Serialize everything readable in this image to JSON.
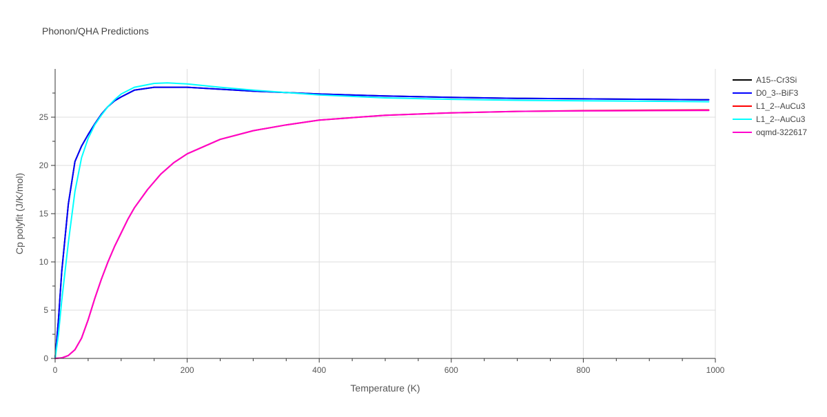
{
  "chart_data": {
    "type": "line",
    "title": "Phonon/QHA Predictions",
    "xlabel": "Temperature (K)",
    "ylabel": "Cp polyfit (J/K/mol)",
    "xlim": [
      0,
      1000
    ],
    "ylim": [
      0,
      30
    ],
    "xticks": [
      0,
      200,
      400,
      600,
      800,
      1000
    ],
    "yticks": [
      0,
      5,
      10,
      15,
      20,
      25
    ],
    "grid": true,
    "legend_position": "top-right",
    "series": [
      {
        "name": "A15--Cr3Si",
        "color": "#000000",
        "x": [
          0,
          5,
          10,
          20,
          30,
          40,
          50,
          60,
          70,
          80,
          90,
          100,
          120,
          150,
          200,
          300,
          400,
          500,
          600,
          700,
          800,
          900,
          990
        ],
        "y": [
          0,
          4,
          9,
          16,
          20.4,
          22,
          23.2,
          24.3,
          25.3,
          26.1,
          26.7,
          27.1,
          27.8,
          28.1,
          28.1,
          27.7,
          27.4,
          27.2,
          27.05,
          26.95,
          26.9,
          26.85,
          26.8
        ]
      },
      {
        "name": "D0_3--BiF3",
        "color": "#0000ff",
        "x": [
          0,
          5,
          10,
          20,
          30,
          40,
          50,
          60,
          70,
          80,
          90,
          100,
          120,
          150,
          200,
          300,
          400,
          500,
          600,
          700,
          800,
          900,
          990
        ],
        "y": [
          0,
          4,
          9,
          16,
          20.4,
          22,
          23.2,
          24.3,
          25.3,
          26.1,
          26.7,
          27.1,
          27.8,
          28.1,
          28.1,
          27.7,
          27.4,
          27.2,
          27.05,
          26.95,
          26.9,
          26.85,
          26.8
        ]
      },
      {
        "name": "L1_2--AuCu3",
        "color": "#ff0000",
        "x": [
          0,
          10,
          20,
          30,
          40,
          50,
          60,
          70,
          80,
          90,
          100,
          110,
          120,
          140,
          160,
          180,
          200,
          250,
          300,
          350,
          400,
          500,
          600,
          700,
          800,
          900,
          990
        ],
        "y": [
          0,
          0.05,
          0.3,
          0.9,
          2.1,
          4,
          6.2,
          8.2,
          10,
          11.6,
          13,
          14.4,
          15.6,
          17.5,
          19.1,
          20.3,
          21.2,
          22.7,
          23.6,
          24.2,
          24.7,
          25.2,
          25.45,
          25.6,
          25.68,
          25.72,
          25.75
        ]
      },
      {
        "name": "L1_2--AuCu3",
        "color": "#00ffff",
        "x": [
          0,
          5,
          10,
          20,
          30,
          40,
          50,
          60,
          70,
          80,
          90,
          100,
          120,
          150,
          170,
          200,
          250,
          300,
          400,
          500,
          600,
          700,
          800,
          900,
          990
        ],
        "y": [
          0,
          2.5,
          6,
          12,
          17.3,
          20.8,
          22.8,
          24.2,
          25.2,
          26.1,
          26.8,
          27.4,
          28.1,
          28.5,
          28.55,
          28.45,
          28.1,
          27.8,
          27.3,
          27.0,
          26.85,
          26.75,
          26.7,
          26.65,
          26.6
        ]
      },
      {
        "name": "oqmd-322617",
        "color": "#ff00cc",
        "x": [
          0,
          10,
          20,
          30,
          40,
          50,
          60,
          70,
          80,
          90,
          100,
          110,
          120,
          140,
          160,
          180,
          200,
          250,
          300,
          350,
          400,
          500,
          600,
          700,
          800,
          900,
          990
        ],
        "y": [
          0,
          0.05,
          0.3,
          0.9,
          2.1,
          4,
          6.2,
          8.2,
          10,
          11.6,
          13,
          14.4,
          15.6,
          17.5,
          19.1,
          20.3,
          21.2,
          22.7,
          23.6,
          24.2,
          24.7,
          25.2,
          25.45,
          25.6,
          25.65,
          25.68,
          25.7
        ]
      }
    ]
  }
}
